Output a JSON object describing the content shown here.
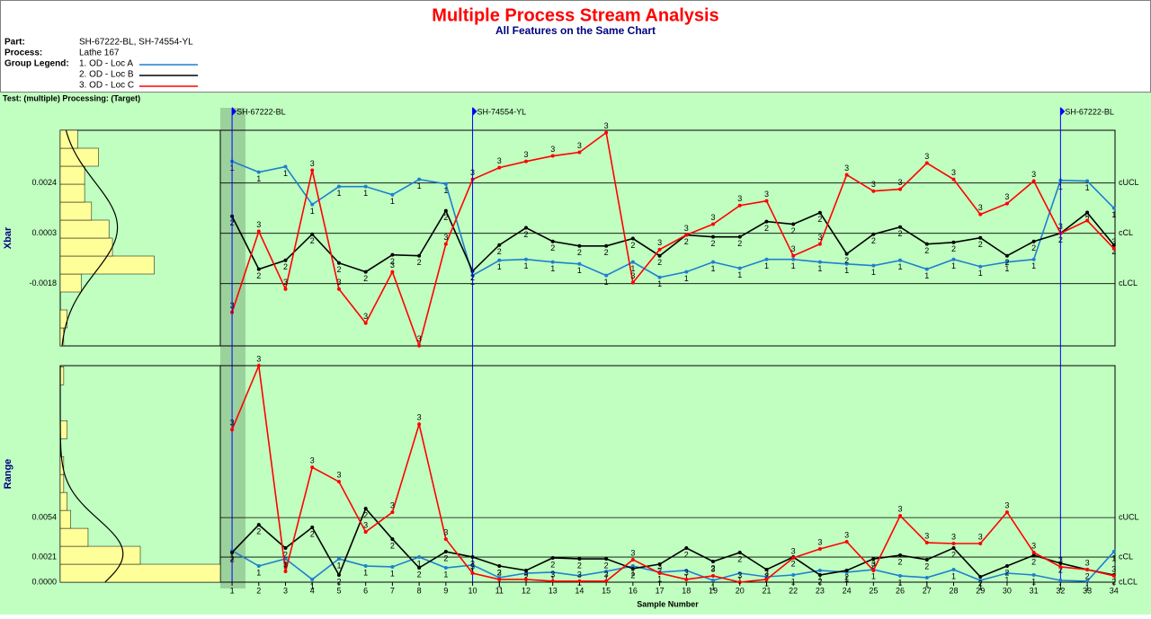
{
  "header": {
    "title": "Multiple Process Stream Analysis",
    "subtitle": "All Features on the Same Chart",
    "part_label": "Part:",
    "part": "SH-67222-BL, SH-74554-YL",
    "process_label": "Process:",
    "process": "Lathe 167",
    "legend_label": "Group Legend:",
    "test_line": "Test: (multiple) Processing: (Target)"
  },
  "chart_data": [
    {
      "type": "line",
      "ylabel": "Xbar",
      "x": [
        1,
        2,
        3,
        4,
        5,
        6,
        7,
        8,
        9,
        10,
        11,
        12,
        13,
        14,
        15,
        16,
        17,
        18,
        19,
        20,
        21,
        22,
        23,
        24,
        25,
        26,
        27,
        28,
        29,
        30,
        31,
        32,
        33,
        34
      ],
      "xlim": [
        0.56,
        34.04
      ],
      "ylim": [
        -0.0044,
        0.0046
      ],
      "yticks": [
        0.0024,
        0.0003,
        -0.0018
      ],
      "limit_labels": [
        "cUCL",
        "cCL",
        "cLCL"
      ],
      "part_changes": [
        {
          "x": 1,
          "label": "SH-67222-BL"
        },
        {
          "x": 10,
          "label": "SH-74554-YL"
        },
        {
          "x": 32,
          "label": "SH-67222-BL"
        }
      ],
      "series": [
        {
          "name": "1. OD - Loc A",
          "point_label": "1",
          "color": "#1f7fd0",
          "values": [
            0.0033,
            0.00285,
            0.00308,
            0.0015,
            0.00225,
            0.00225,
            0.00191,
            0.00255,
            0.00236,
            -0.00146,
            -0.00083,
            -0.00079,
            -0.0009,
            -0.00098,
            -0.00146,
            -0.0009,
            -0.00154,
            -0.00131,
            -0.0009,
            -0.00116,
            -0.00079,
            -0.00079,
            -0.0009,
            -0.00098,
            -0.00105,
            -0.00083,
            -0.0012,
            -0.00079,
            -0.00109,
            -0.0009,
            -0.00079,
            0.00251,
            0.00248,
            0.00135
          ]
        },
        {
          "name": "2. OD - Loc B",
          "point_label": "2",
          "color": "#000000",
          "values": [
            0.00101,
            -0.0012,
            -0.00083,
            0.00026,
            -0.00094,
            -0.00131,
            -0.0006,
            -0.00064,
            0.00124,
            -0.00128,
            -0.00019,
            0.00053,
            -4e-05,
            -0.00023,
            -0.00023,
            8e-05,
            -0.00064,
            0.00023,
            0.00015,
            0.00015,
            0.00079,
            0.00068,
            0.00116,
            -0.00056,
            0.00026,
            0.00056,
            -0.00015,
            -8e-05,
            0.00011,
            -0.00064,
            -4e-05,
            0.0003,
            0.00116,
            -0.00019
          ]
        },
        {
          "name": "3. OD - Loc C",
          "point_label": "3",
          "color": "#ff0000",
          "values": [
            -0.003,
            0.00038,
            -0.00203,
            0.00293,
            -0.00203,
            -0.00345,
            -0.00131,
            -0.00439,
            -0.00015,
            0.00255,
            0.00304,
            0.0033,
            0.00353,
            0.00368,
            0.0045,
            -0.00176,
            -0.00038,
            0.00023,
            0.00068,
            0.00146,
            0.00165,
            -0.00064,
            -0.00015,
            0.00274,
            0.00206,
            0.00214,
            0.00323,
            0.00255,
            0.00109,
            0.00154,
            0.00248,
            0.0003,
            0.00083,
            -0.00034
          ]
        }
      ],
      "histogram": {
        "bins": [
          -0.0044,
          -0.00365,
          -0.0029,
          -0.00215,
          -0.0014,
          -0.00065,
          0.0001,
          0.00085,
          0.0016,
          0.00235,
          0.0031,
          0.00385,
          0.0046
        ],
        "counts": [
          1,
          2,
          0,
          6,
          27,
          15,
          14,
          9,
          7,
          7,
          11,
          5
        ],
        "xlim": [
          0,
          46
        ],
        "color": "#ffff99"
      }
    },
    {
      "type": "line",
      "ylabel": "Range",
      "xlabel": "Sample Number",
      "x": [
        1,
        2,
        3,
        4,
        5,
        6,
        7,
        8,
        9,
        10,
        11,
        12,
        13,
        14,
        15,
        16,
        17,
        18,
        19,
        20,
        21,
        22,
        23,
        24,
        25,
        26,
        27,
        28,
        29,
        30,
        31,
        32,
        33,
        34
      ],
      "xticks": [
        1,
        2,
        3,
        4,
        5,
        6,
        7,
        8,
        9,
        10,
        11,
        12,
        13,
        14,
        15,
        16,
        17,
        18,
        19,
        20,
        21,
        22,
        23,
        24,
        25,
        26,
        27,
        28,
        29,
        30,
        31,
        32,
        33,
        34
      ],
      "xlim": [
        0.56,
        34.04
      ],
      "ylim": [
        0,
        0.0181
      ],
      "yticks": [
        0.0054,
        0.0021,
        {
          "value": 0,
          "label": "0.0000"
        }
      ],
      "limit_labels": [
        "cUCL",
        "cCL",
        "cLCL"
      ],
      "series": [
        {
          "point_label": "1",
          "color": "#1f7fd0",
          "values": [
            0.00263,
            0.00135,
            0.00195,
            0.00023,
            0.00195,
            0.00135,
            0.00128,
            0.0021,
            0.0012,
            0.00143,
            0.00038,
            0.00075,
            0.00083,
            0.00053,
            0.0009,
            0.00135,
            0.00083,
            0.00098,
            0.00015,
            0.00075,
            0.00045,
            0.0006,
            0.00098,
            0.00083,
            0.00105,
            0.00053,
            0.00038,
            0.00105,
            0.00015,
            0.00075,
            0.0006,
            0.00015,
            8e-05,
            0.00255
          ]
        },
        {
          "point_label": "2",
          "color": "#000000",
          "values": [
            0.00248,
            0.0048,
            0.00285,
            0.00458,
            0.0006,
            0.00615,
            0.0036,
            0.0012,
            0.00255,
            0.0021,
            0.00135,
            0.00098,
            0.00203,
            0.00195,
            0.00195,
            0.00113,
            0.0015,
            0.00285,
            0.00173,
            0.00248,
            0.00105,
            0.0021,
            0.0006,
            0.00098,
            0.00195,
            0.00225,
            0.00188,
            0.00285,
            0.00045,
            0.00135,
            0.00225,
            0.00158,
            0.00105,
            0.0006
          ]
        },
        {
          "point_label": "3",
          "color": "#ff0000",
          "values": [
            0.01275,
            0.0181,
            0.0009,
            0.0096,
            0.0084,
            0.0042,
            0.00585,
            0.0132,
            0.0036,
            0.00075,
            0.00023,
            0.00023,
            8e-05,
            8e-05,
            8e-05,
            0.00188,
            0.00075,
            0.00023,
            0.00053,
            0,
            0.00023,
            0.00203,
            0.00278,
            0.00338,
            0.00098,
            0.00555,
            0.0033,
            0.00323,
            0.00323,
            0.00585,
            0.00248,
            0.00128,
            0.00105,
            0.00053
          ]
        }
      ],
      "histogram": {
        "bins": [
          0,
          0.0015,
          0.003,
          0.0045,
          0.006,
          0.0075,
          0.009,
          0.0105,
          0.012,
          0.0135,
          0.015,
          0.0165,
          0.018
        ],
        "counts": [
          46,
          23,
          8,
          3,
          2,
          1,
          1,
          0,
          2,
          0,
          0,
          1
        ],
        "xlim": [
          0,
          46
        ],
        "color": "#ffff99"
      }
    }
  ]
}
